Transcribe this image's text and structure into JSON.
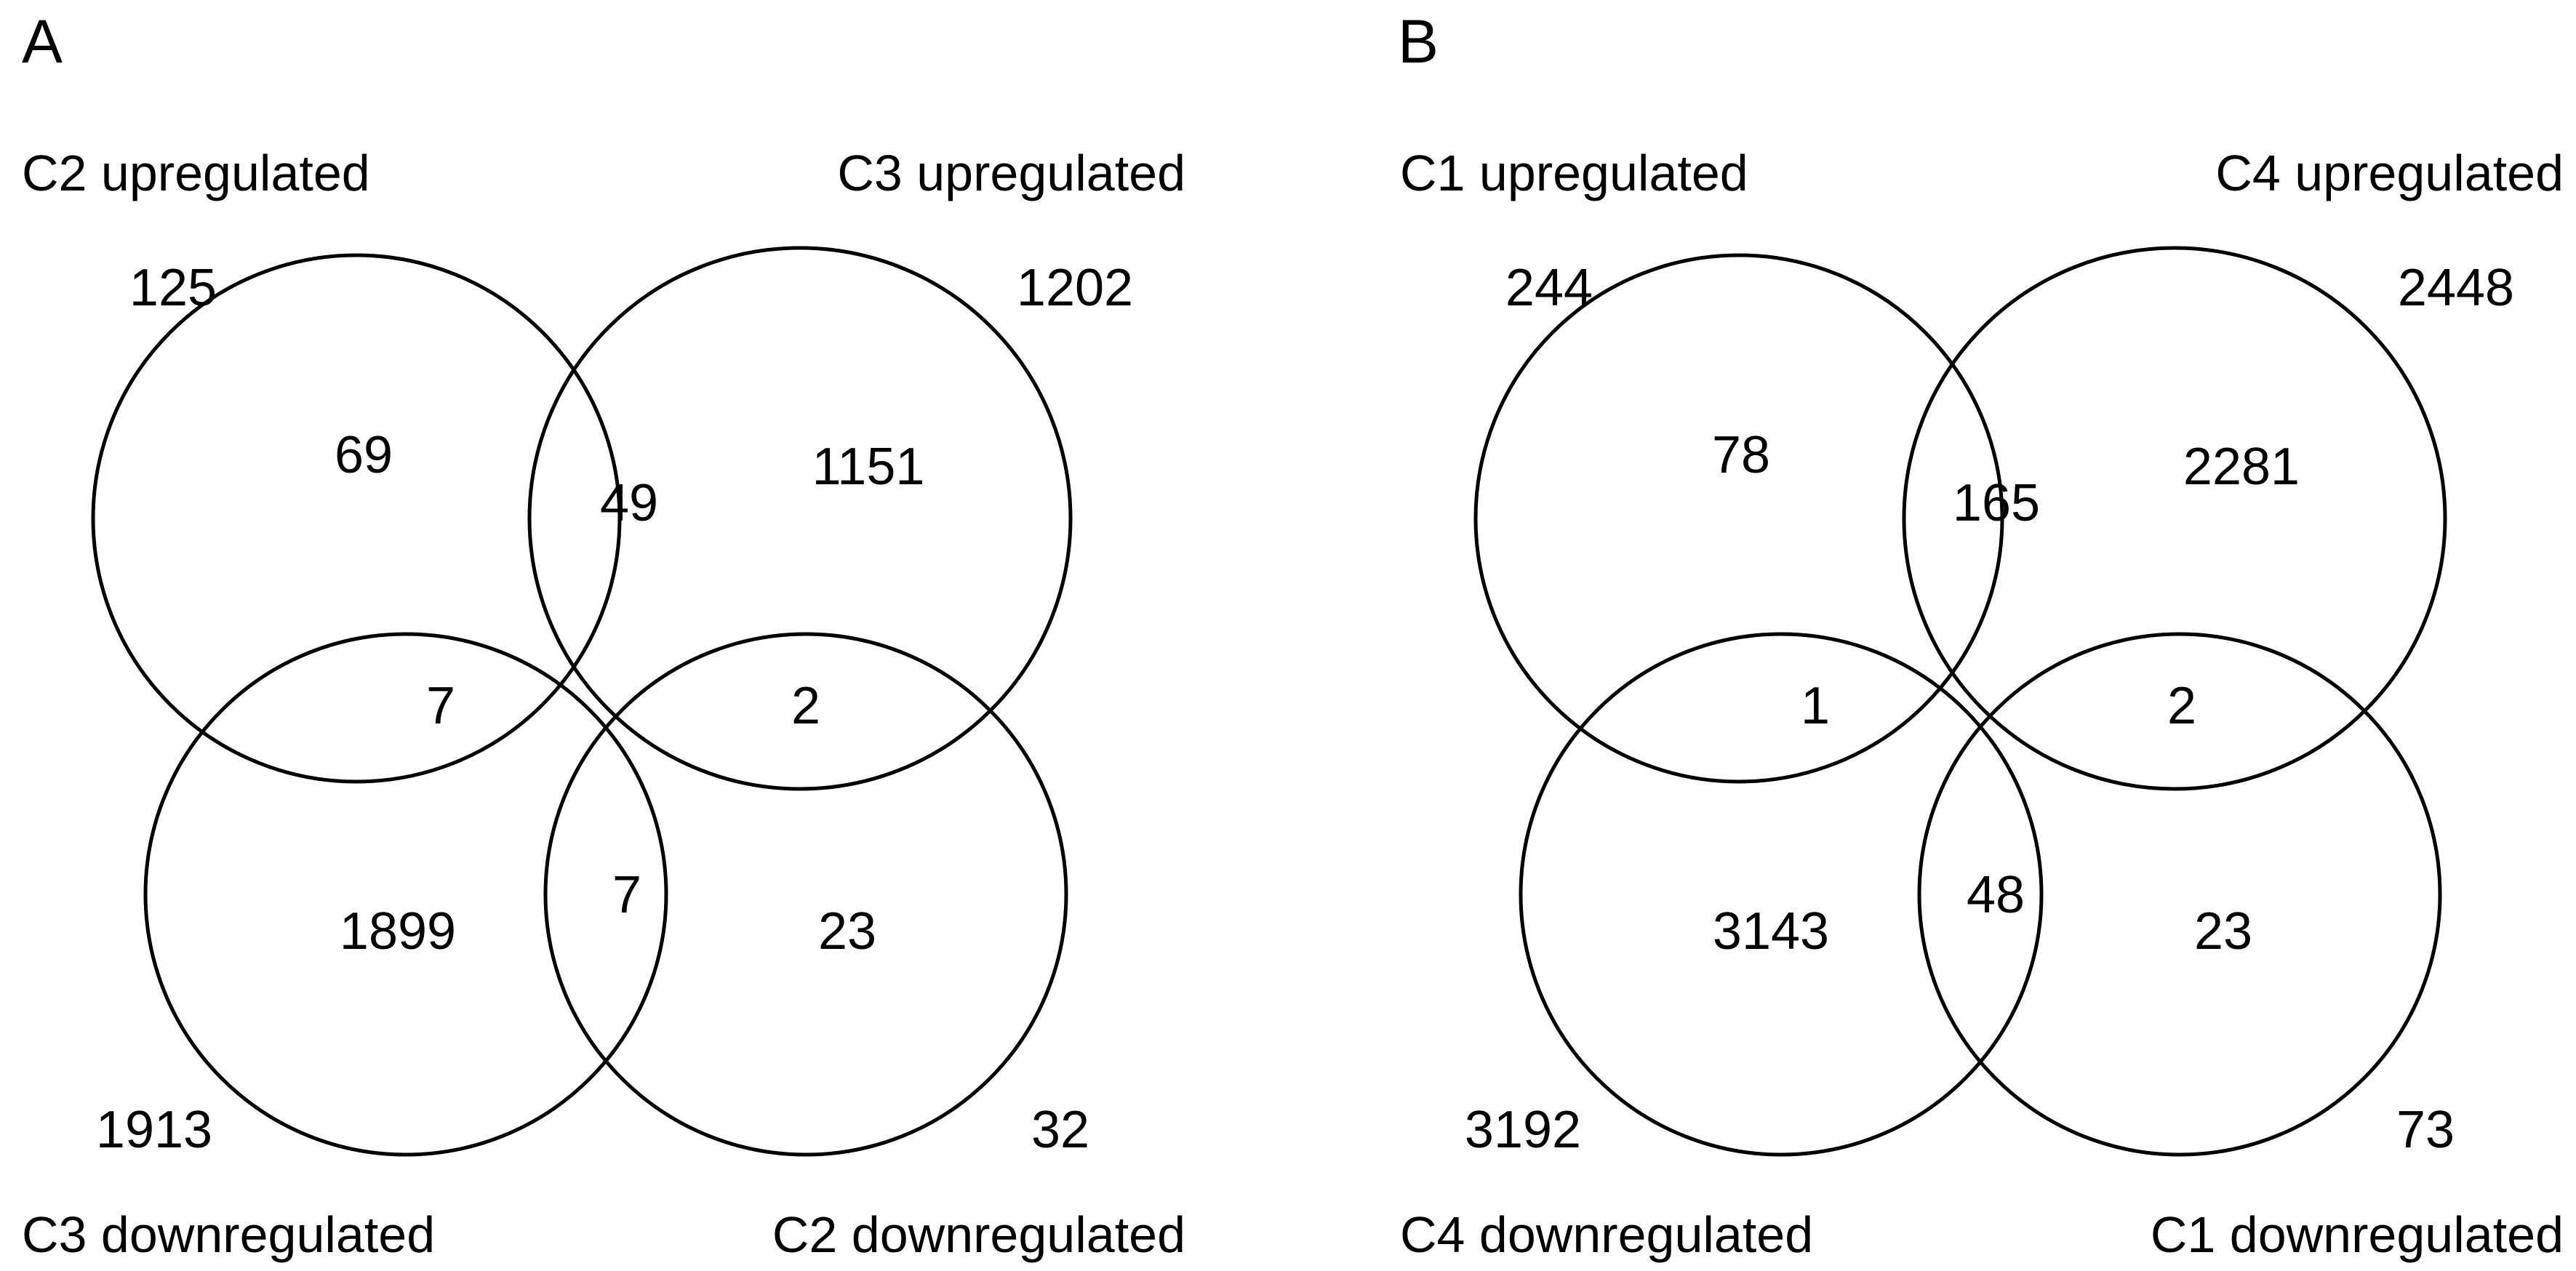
{
  "panels": [
    {
      "letter": "A",
      "sets": {
        "top_left": {
          "label": "C2 upregulated",
          "total": "125"
        },
        "top_right": {
          "label": "C3 upregulated",
          "total": "1202"
        },
        "bottom_left": {
          "label": "C3 downregulated",
          "total": "1913"
        },
        "bottom_right": {
          "label": "C2 downregulated",
          "total": "32"
        }
      },
      "regions": {
        "top_left_only": "69",
        "top_overlap": "49",
        "top_right_only": "1151",
        "left_overlap": "7",
        "right_overlap": "2",
        "bottom_left_only": "1899",
        "bottom_overlap": "7",
        "bottom_right_only": "23"
      }
    },
    {
      "letter": "B",
      "sets": {
        "top_left": {
          "label": "C1 upregulated",
          "total": "244"
        },
        "top_right": {
          "label": "C4 upregulated",
          "total": "2448"
        },
        "bottom_left": {
          "label": "C4 downregulated",
          "total": "3192"
        },
        "bottom_right": {
          "label": "C1 downregulated",
          "total": "73"
        }
      },
      "regions": {
        "top_left_only": "78",
        "top_overlap": "165",
        "top_right_only": "2281",
        "left_overlap": "1",
        "right_overlap": "2",
        "bottom_left_only": "3143",
        "bottom_overlap": "48",
        "bottom_right_only": "23"
      }
    }
  ]
}
